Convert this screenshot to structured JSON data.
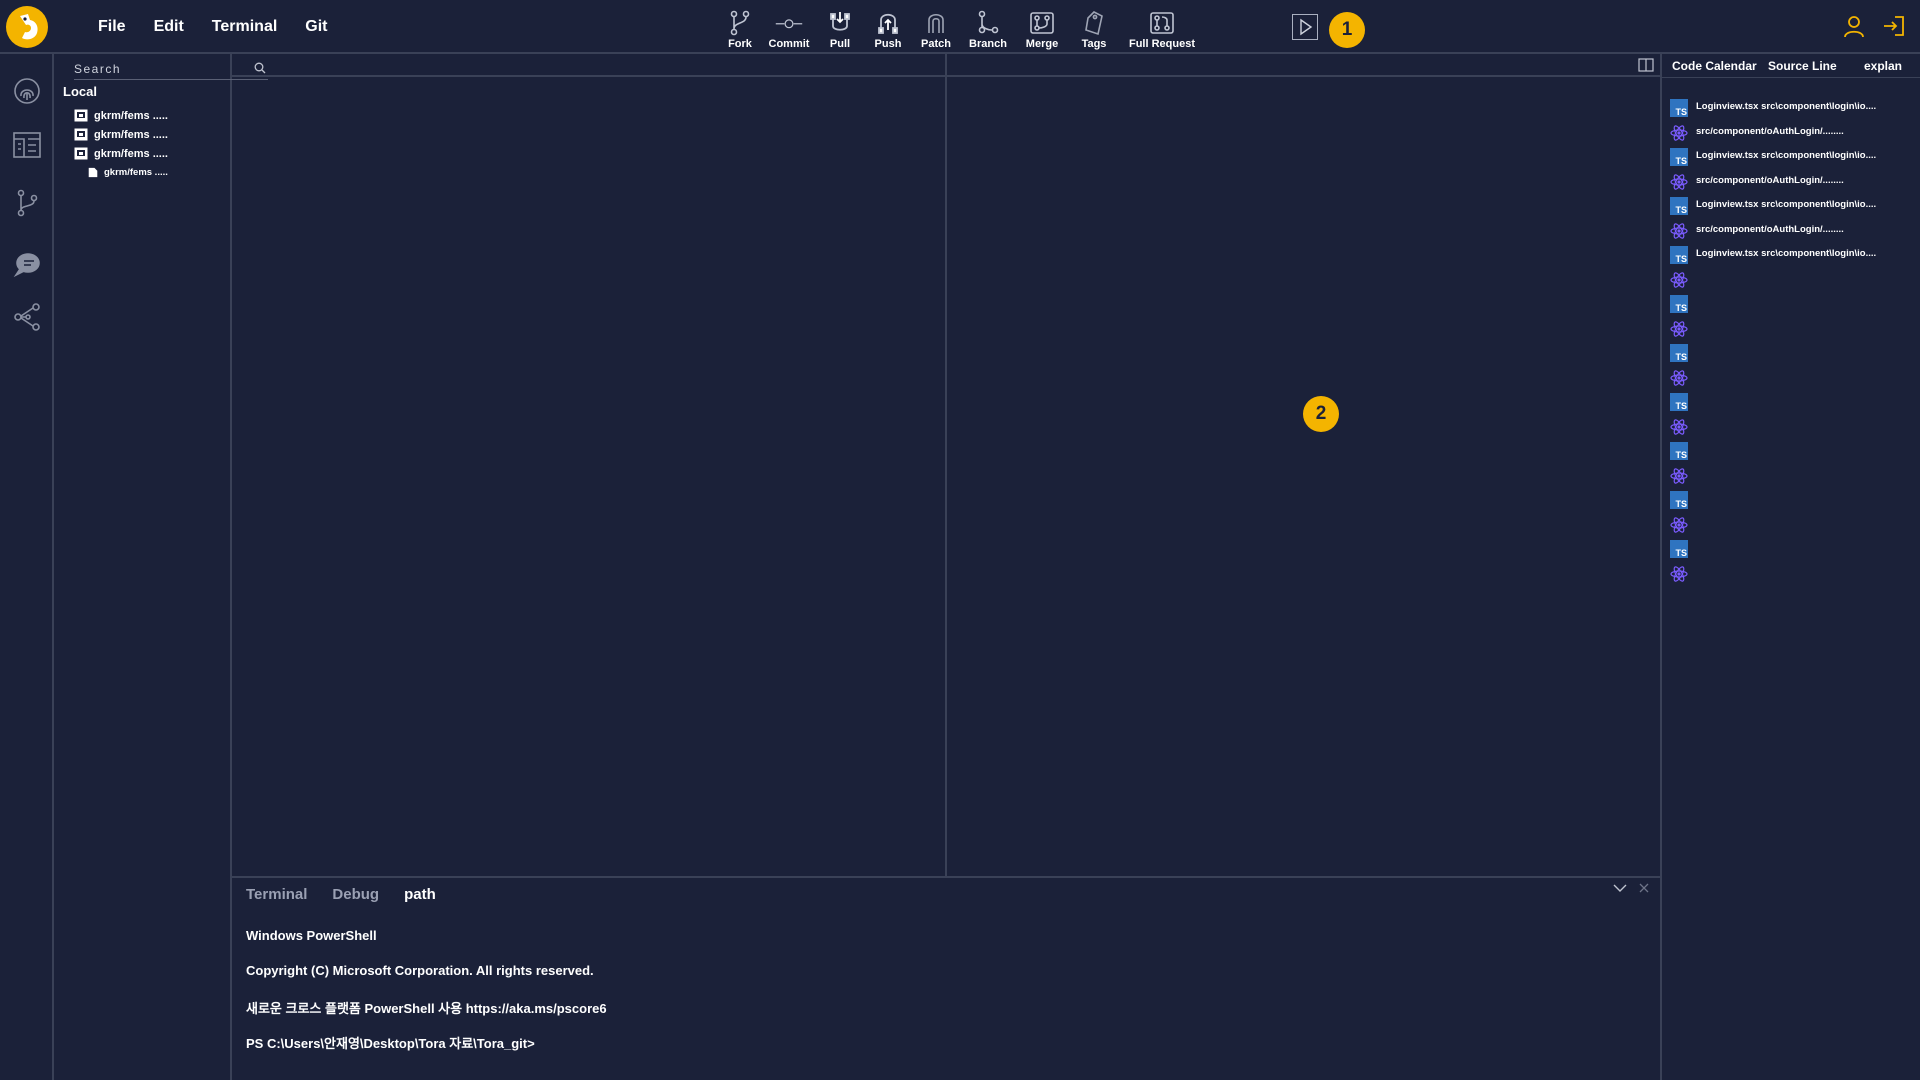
{
  "menu": [
    "File",
    "Edit",
    "Terminal",
    "Git"
  ],
  "toolbar": [
    {
      "label": "Fork",
      "icon": "fork-icon"
    },
    {
      "label": "Commit",
      "icon": "commit-icon"
    },
    {
      "label": "Pull",
      "icon": "pull-icon"
    },
    {
      "label": "Push",
      "icon": "push-icon"
    },
    {
      "label": "Patch",
      "icon": "patch-icon"
    },
    {
      "label": "Branch",
      "icon": "branch-icon"
    },
    {
      "label": "Merge",
      "icon": "merge-icon"
    },
    {
      "label": "Tags",
      "icon": "tag-icon"
    },
    {
      "label": "Full Request",
      "icon": "pull-request-icon"
    }
  ],
  "badges": {
    "one": "1",
    "two": "2"
  },
  "explorer": {
    "search_placeholder": "Search",
    "section_title": "Local",
    "tree": [
      "gkrm/fems .....",
      "gkrm/fems .....",
      "gkrm/fems .....",
      "gkrm/fems ....."
    ]
  },
  "panel": {
    "tabs": [
      "Terminal",
      "Debug",
      "path"
    ],
    "active_tab": "path",
    "terminal_lines": [
      "Windows PowerShell",
      "Copyright (C) Microsoft Corporation. All rights reserved.",
      "새로운 크로스 플랫폼 PowerShell 사용 https://aka.ms/pscore6",
      "PS C:\\Users\\안재영\\Desktop\\Tora 자료\\Tora_git>"
    ]
  },
  "rightbar": {
    "tabs": [
      "Code Calendar",
      "Source Line",
      "explan"
    ],
    "ts_label": "TS",
    "rows": [
      {
        "type": "ts",
        "text": "Loginview.tsx src\\component\\login\\io...."
      },
      {
        "type": "react",
        "text": "src/component/oAuthLogin/........"
      },
      {
        "type": "ts",
        "text": "Loginview.tsx src\\component\\login\\io...."
      },
      {
        "type": "react",
        "text": "src/component/oAuthLogin/........"
      },
      {
        "type": "ts",
        "text": "Loginview.tsx src\\component\\login\\io...."
      },
      {
        "type": "react",
        "text": "src/component/oAuthLogin/........"
      },
      {
        "type": "ts",
        "text": "Loginview.tsx src\\component\\login\\io...."
      },
      {
        "type": "react",
        "text": ""
      },
      {
        "type": "ts",
        "text": ""
      },
      {
        "type": "react",
        "text": ""
      },
      {
        "type": "ts",
        "text": ""
      },
      {
        "type": "react",
        "text": ""
      },
      {
        "type": "ts",
        "text": ""
      },
      {
        "type": "react",
        "text": ""
      },
      {
        "type": "ts",
        "text": ""
      },
      {
        "type": "react",
        "text": ""
      },
      {
        "type": "ts",
        "text": ""
      },
      {
        "type": "react",
        "text": ""
      },
      {
        "type": "ts",
        "text": ""
      },
      {
        "type": "react",
        "text": ""
      }
    ]
  },
  "colors": {
    "background": "#1b2139",
    "accent": "#f4b400",
    "divider": "#3a4157",
    "ts_blue": "#2f74c0",
    "react_purple": "#7b5cff"
  }
}
